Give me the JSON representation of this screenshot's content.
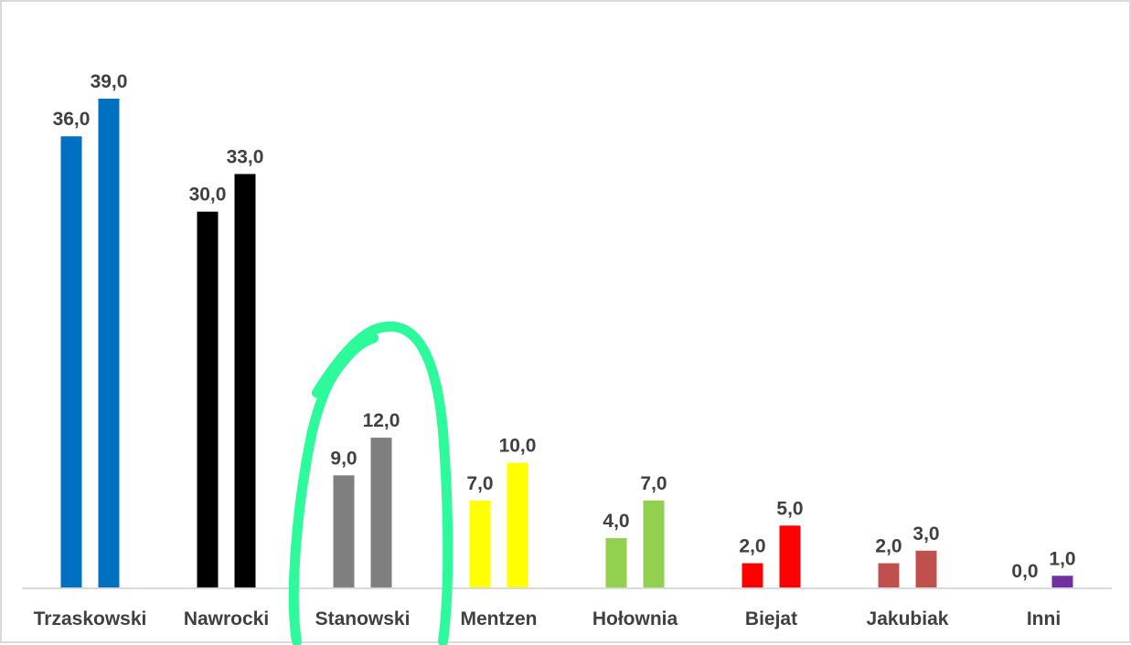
{
  "chart_data": {
    "type": "bar",
    "categories": [
      "Trzaskowski",
      "Nawrocki",
      "Stanowski",
      "Mentzen",
      "Hołownia",
      "Biejat",
      "Jakubiak",
      "Inni"
    ],
    "series": [
      {
        "values": [
          36.0,
          30.0,
          9.0,
          7.0,
          4.0,
          2.0,
          2.0,
          0.0
        ]
      },
      {
        "values": [
          39.0,
          33.0,
          12.0,
          10.0,
          7.0,
          5.0,
          3.0,
          1.0
        ]
      }
    ],
    "value_labels": [
      [
        "36,0",
        "30,0",
        "9,0",
        "7,0",
        "4,0",
        "2,0",
        "2,0",
        "0,0"
      ],
      [
        "39,0",
        "33,0",
        "12,0",
        "10,0",
        "7,0",
        "5,0",
        "3,0",
        "1,0"
      ]
    ],
    "category_colors": [
      "#0070c0",
      "#000000",
      "#7f7f7f",
      "#ffff00",
      "#92d050",
      "#ff0000",
      "#c0504d",
      "#7030a0"
    ],
    "ylim": [
      0,
      39
    ],
    "grid": false,
    "legend": "none",
    "annotation": {
      "shape": "hand-drawn-circle",
      "target": "Stanowski",
      "color": "#2dfa9a"
    }
  }
}
